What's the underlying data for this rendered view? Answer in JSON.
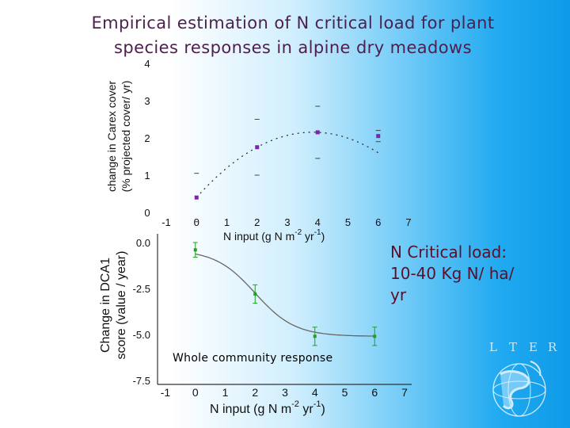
{
  "title": {
    "line1": "Empirical estimation of N critical load for plant",
    "line2": "species responses in alpine dry meadows"
  },
  "note": {
    "line1": "N Critical load:",
    "line2": "10-40 Kg N/ ha/",
    "line3": "yr"
  },
  "annotation": "Whole community response",
  "logo_text": [
    "L",
    "T",
    "E",
    "R"
  ],
  "colors": {
    "purple": "#8020b0",
    "green": "#20a020",
    "axis": "#333333",
    "title": "#4d1f4d",
    "note": "#5a0f2a"
  },
  "chart_data": [
    {
      "type": "scatter",
      "ylabel_line1": "change in Carex cover",
      "ylabel_line2": "(% projected cover/ yr)",
      "xlabel": [
        "N input (g N m",
        "-2",
        " yr",
        "-1",
        ")"
      ],
      "xlim": [
        -1,
        7
      ],
      "ylim": [
        0,
        4
      ],
      "xticks": [
        "-1",
        "0",
        "1",
        "2",
        "3",
        "4",
        "5",
        "6",
        "7"
      ],
      "yticks": [
        "0",
        "1",
        "2",
        "3",
        "4"
      ],
      "x": [
        0,
        2,
        4,
        6
      ],
      "y": [
        0.4,
        1.75,
        2.15,
        2.05
      ],
      "err": [
        0.65,
        0.75,
        0.7,
        0.15
      ],
      "fit": "quadratic",
      "color": "purple"
    },
    {
      "type": "line",
      "ylabel_line1": "Change in DCA1",
      "ylabel_line2": "score (value / year)",
      "xlabel": [
        "N input (g N m",
        "-2",
        " yr",
        "-1",
        ")"
      ],
      "xlim": [
        -1,
        7
      ],
      "ylim": [
        -7.5,
        0
      ],
      "xticks": [
        "-1",
        "0",
        "1",
        "2",
        "3",
        "4",
        "5",
        "6",
        "7"
      ],
      "yticks": [
        "0.0",
        "-2.5",
        "-5.0",
        "-7.5"
      ],
      "x": [
        0,
        2,
        4,
        6
      ],
      "y": [
        -0.4,
        -2.8,
        -5.1,
        -5.1
      ],
      "err": [
        0.4,
        0.5,
        0.5,
        0.5
      ],
      "fit": "sigmoid",
      "color": "green"
    }
  ]
}
